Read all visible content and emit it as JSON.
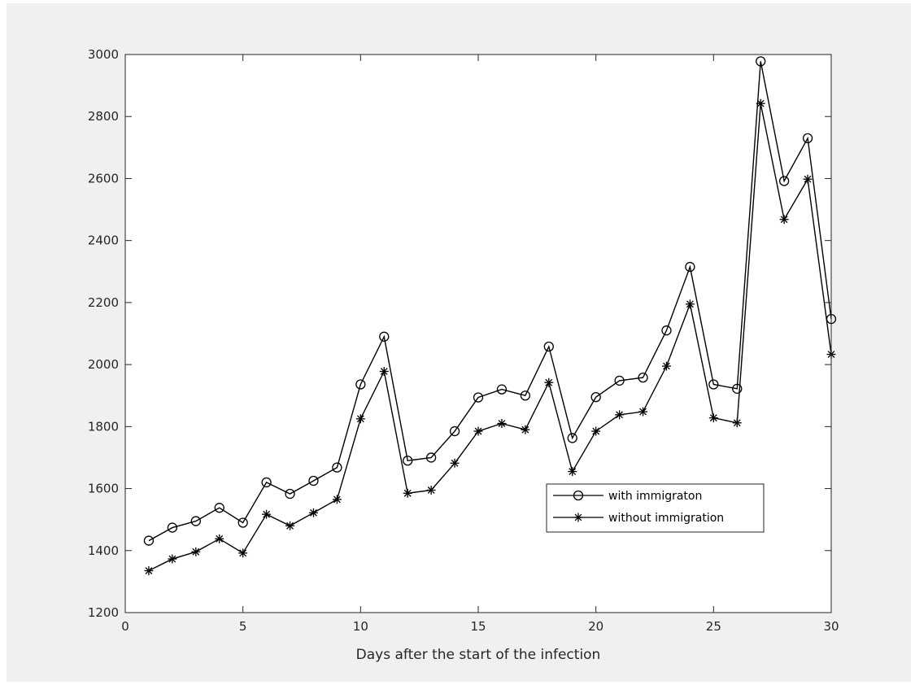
{
  "chart_data": {
    "type": "line",
    "title": "",
    "xlabel": "Days after the start of the infection",
    "ylabel": "",
    "xlim": [
      0,
      30
    ],
    "ylim": [
      1200,
      3000
    ],
    "xticks": [
      0,
      5,
      10,
      15,
      20,
      25,
      30
    ],
    "yticks": [
      1200,
      1400,
      1600,
      1800,
      2000,
      2200,
      2400,
      2600,
      2800,
      3000
    ],
    "grid": false,
    "legend_position": "inside-lower-right",
    "x": [
      1,
      2,
      3,
      4,
      5,
      6,
      7,
      8,
      9,
      10,
      11,
      12,
      13,
      14,
      15,
      16,
      17,
      18,
      19,
      20,
      21,
      22,
      23,
      24,
      25,
      26,
      27,
      28,
      29,
      30
    ],
    "series": [
      {
        "name": "with immigraton",
        "marker": "circle",
        "color": "#000000",
        "values": [
          1432,
          1474,
          1495,
          1538,
          1490,
          1620,
          1583,
          1625,
          1668,
          1936,
          2090,
          1690,
          1700,
          1785,
          1894,
          1920,
          1900,
          2058,
          1763,
          1895,
          1948,
          1958,
          2110,
          2315,
          1936,
          1922,
          2978,
          2592,
          2730,
          2147
        ]
      },
      {
        "name": "without immigration",
        "marker": "star",
        "color": "#000000",
        "values": [
          1335,
          1373,
          1396,
          1438,
          1392,
          1517,
          1480,
          1522,
          1565,
          1825,
          1978,
          1585,
          1595,
          1682,
          1785,
          1810,
          1790,
          1942,
          1655,
          1785,
          1838,
          1848,
          1995,
          2195,
          1828,
          1812,
          2842,
          2468,
          2598,
          2033
        ]
      }
    ]
  }
}
